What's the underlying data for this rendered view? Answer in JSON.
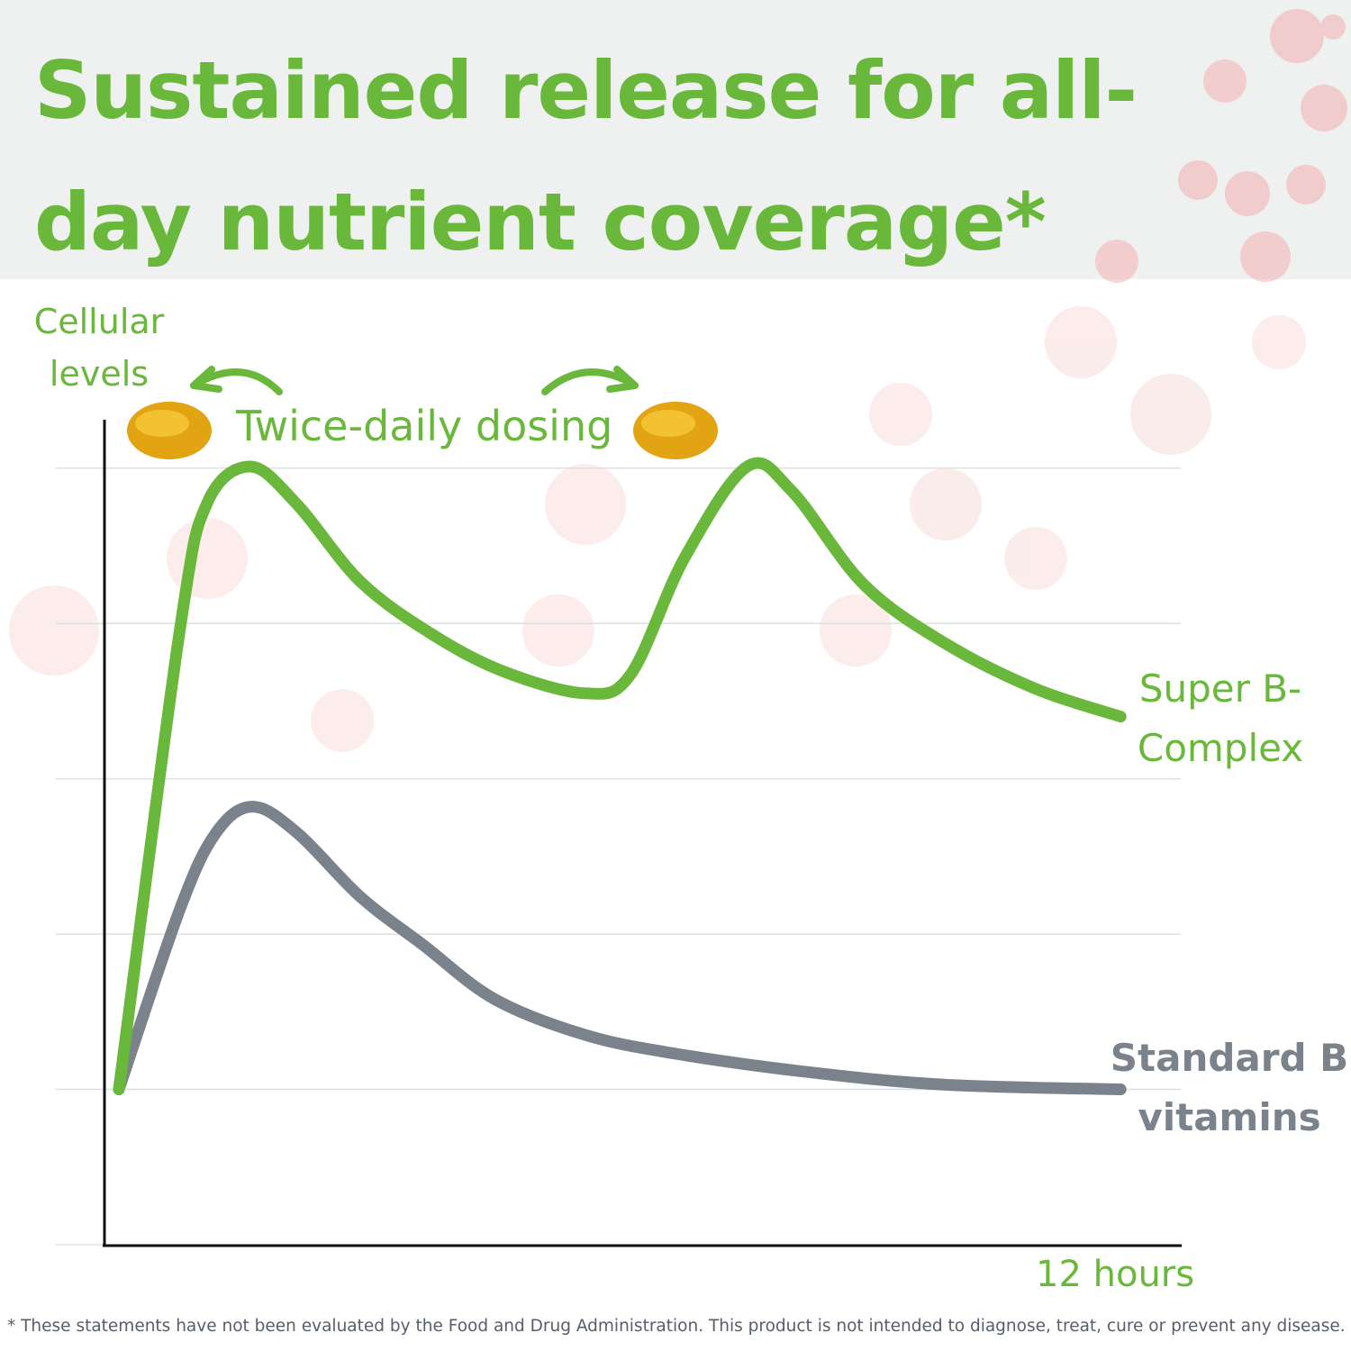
{
  "chart_data": {
    "type": "line",
    "title": "Sustained release for all-day nutrient coverage*",
    "y_label": "Cellular levels",
    "x_label": "12 hours",
    "annotation": "Twice-daily dosing",
    "footnote": "* These statements have not been evaluated by the Food and Drug Administration. This product is not intended to diagnose, treat, cure or prevent any disease.",
    "xlim": [
      0,
      12
    ],
    "ylim": [
      0,
      5.3
    ],
    "grid": true,
    "series": [
      {
        "name": "Super B-Complex",
        "color": "#6ab83b",
        "x": [
          0.17,
          0.85,
          1.15,
          1.63,
          2.15,
          2.86,
          3.66,
          4.46,
          5.37,
          5.87,
          6.47,
          7.17,
          7.67,
          8.47,
          9.38,
          10.38,
          11.33
        ],
        "values": [
          1.0,
          3.96,
          4.77,
          5.01,
          4.77,
          4.27,
          3.93,
          3.69,
          3.55,
          3.67,
          4.42,
          5.01,
          4.85,
          4.25,
          3.87,
          3.58,
          3.4
        ]
      },
      {
        "name": "Standard B vitamins",
        "color": "#7a838b",
        "x": [
          0.17,
          0.85,
          1.25,
          1.66,
          2.16,
          2.86,
          3.56,
          4.36,
          5.37,
          6.37,
          7.87,
          9.38,
          11.33
        ],
        "values": [
          1.0,
          2.16,
          2.65,
          2.82,
          2.65,
          2.24,
          1.93,
          1.58,
          1.35,
          1.23,
          1.11,
          1.03,
          1.0
        ]
      }
    ]
  }
}
